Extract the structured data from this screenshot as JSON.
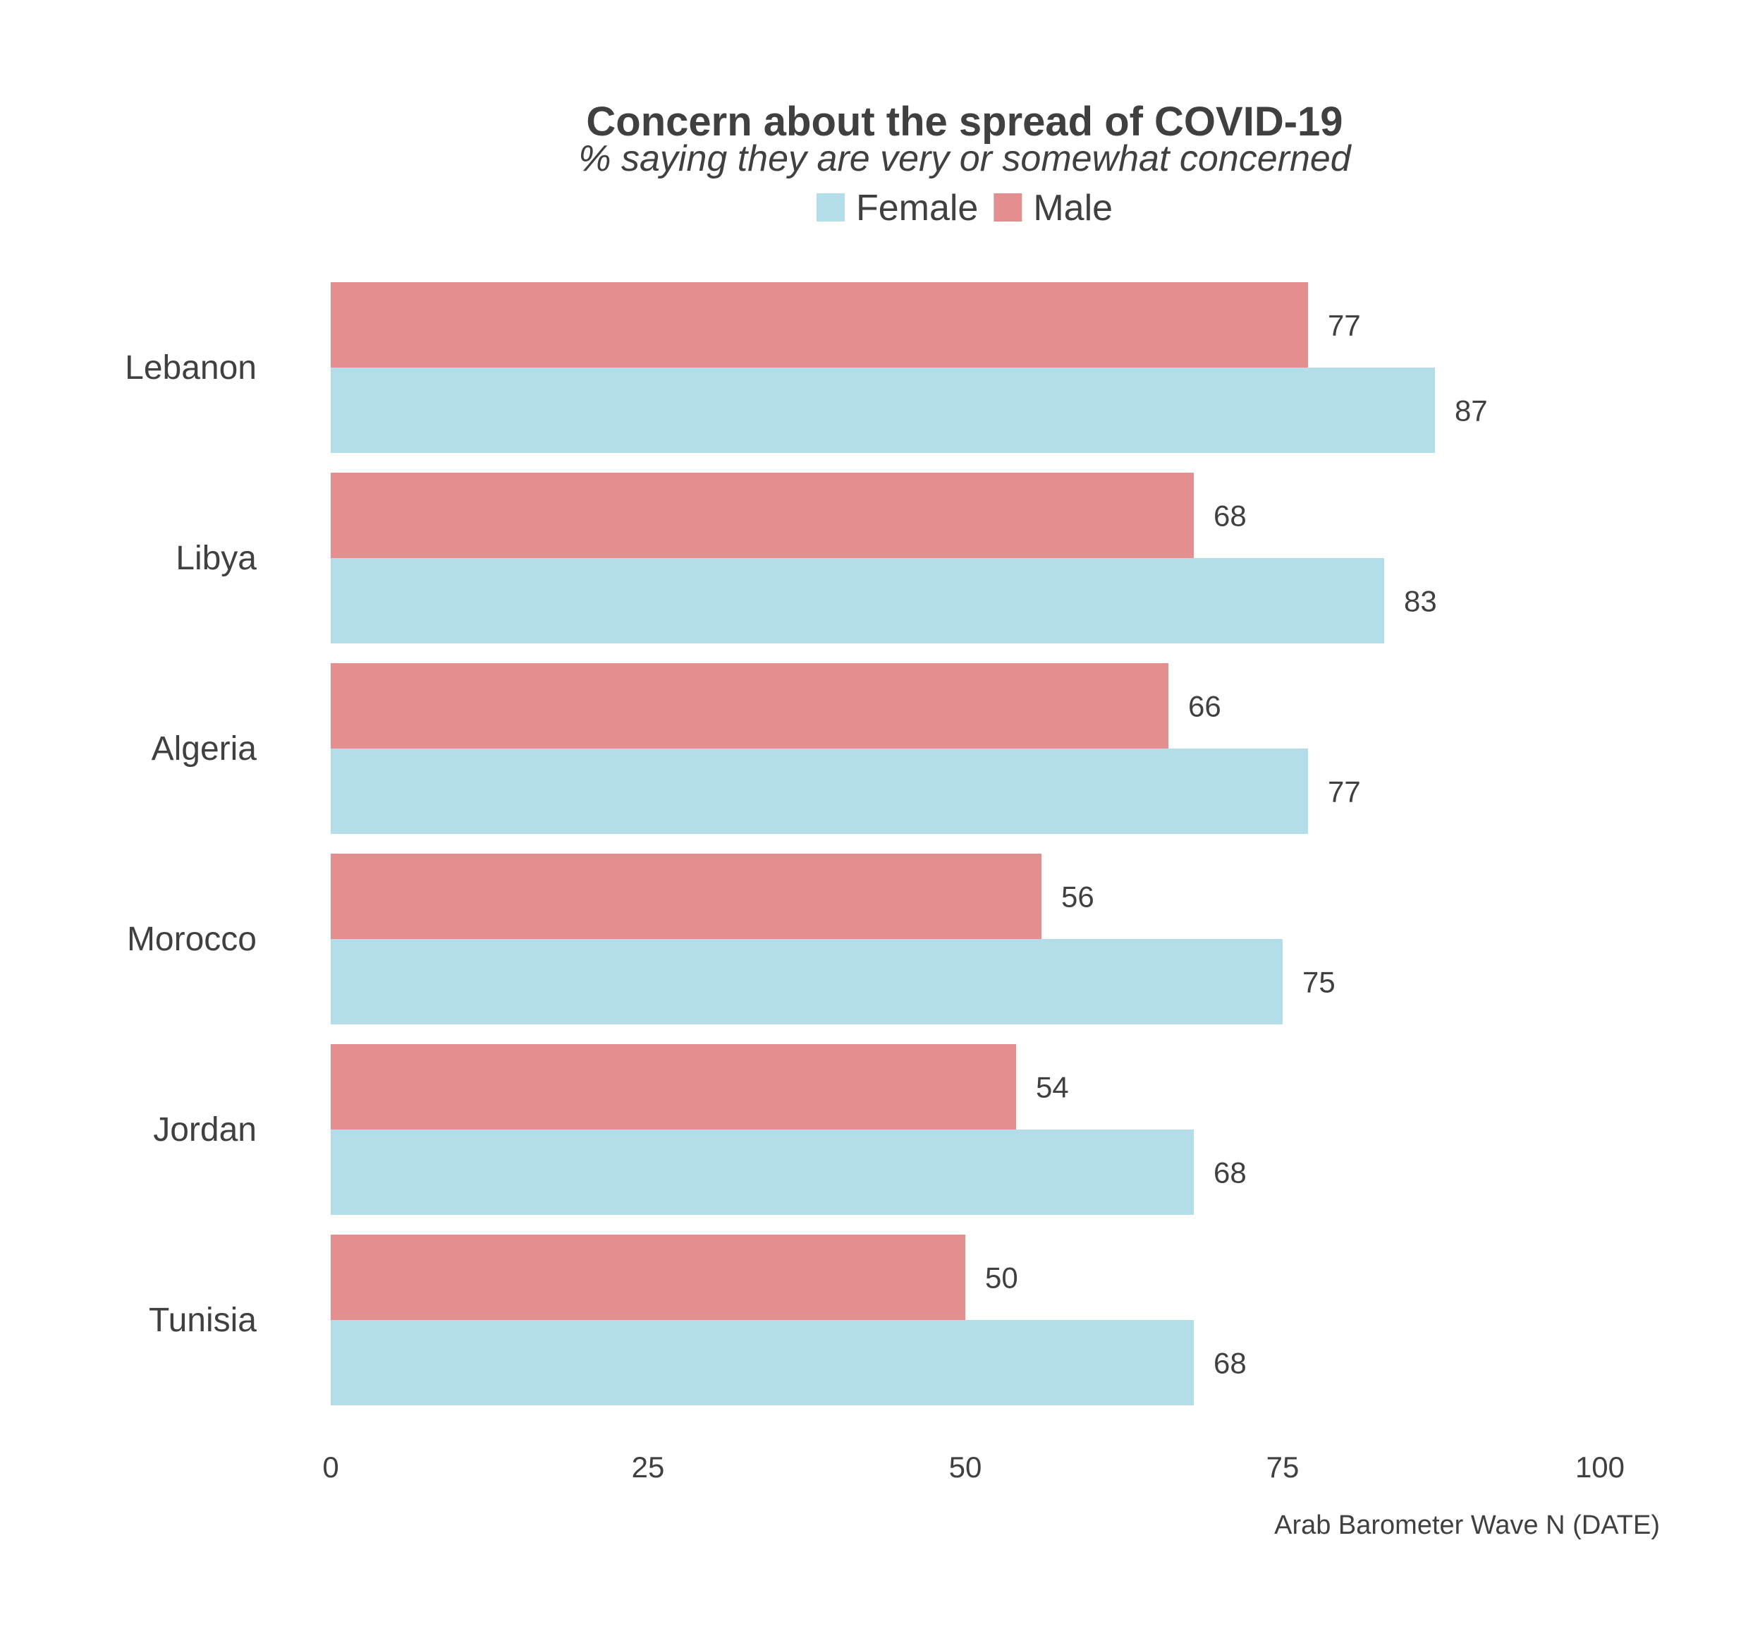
{
  "chart_data": {
    "type": "bar",
    "orientation": "horizontal",
    "title": "Concern about the spread of COVID-19",
    "subtitle": "% saying they are very or somewhat concerned",
    "caption": "Arab Barometer Wave N (DATE)",
    "categories": [
      "Lebanon",
      "Libya",
      "Algeria",
      "Morocco",
      "Jordan",
      "Tunisia"
    ],
    "series": [
      {
        "name": "Female",
        "color": "#b3dde9",
        "values": [
          87,
          83,
          77,
          75,
          68,
          68
        ]
      },
      {
        "name": "Male",
        "color": "#e38f90",
        "values": [
          77,
          68,
          66,
          56,
          54,
          50
        ]
      }
    ],
    "legend_order": [
      "Female",
      "Male"
    ],
    "xlim": [
      0,
      100
    ],
    "xticks": [
      0,
      25,
      50,
      75,
      100
    ],
    "legend_position": "top",
    "grid": false,
    "text_color": "#404040"
  }
}
